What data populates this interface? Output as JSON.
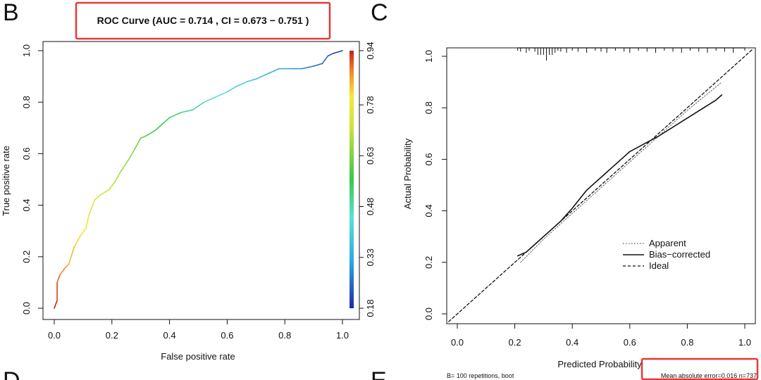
{
  "panels": {
    "b_letter": "B",
    "c_letter": "C",
    "d_letter": "D",
    "e_letter": "E"
  },
  "colors": {
    "highlight_box": "#e53935",
    "axis": "#111111"
  },
  "chart_data": [
    {
      "type": "line",
      "title": "ROC Curve (AUC = 0.714 , CI = 0.673 − 0.751 )",
      "xlabel": "False positive rate",
      "ylabel": "True positive rate",
      "xlim": [
        0,
        1
      ],
      "ylim": [
        0,
        1
      ],
      "xticks": [
        "0.0",
        "0.2",
        "0.4",
        "0.6",
        "0.8",
        "1.0"
      ],
      "yticks": [
        "0.0",
        "0.2",
        "0.4",
        "0.6",
        "0.8",
        "1.0"
      ],
      "colorbar": {
        "ticks": [
          "0.18",
          "0.33",
          "0.48",
          "0.63",
          "0.78",
          "0.94"
        ],
        "range": [
          0.18,
          0.94
        ]
      },
      "grid": false,
      "series": [
        {
          "x": [
            0,
            0.01,
            0.01,
            0.02,
            0.04,
            0.05,
            0.07,
            0.09,
            0.11,
            0.12,
            0.14,
            0.16,
            0.19,
            0.21,
            0.23,
            0.26,
            0.28,
            0.3,
            0.32,
            0.35,
            0.38,
            0.4,
            0.44,
            0.48,
            0.52,
            0.56,
            0.6,
            0.63,
            0.67,
            0.7,
            0.74,
            0.78,
            0.82,
            0.86,
            0.9,
            0.93,
            0.95,
            0.97,
            1.0
          ],
          "y": [
            0,
            0.03,
            0.1,
            0.13,
            0.16,
            0.17,
            0.24,
            0.28,
            0.31,
            0.36,
            0.42,
            0.44,
            0.46,
            0.49,
            0.53,
            0.58,
            0.62,
            0.66,
            0.67,
            0.69,
            0.72,
            0.74,
            0.76,
            0.77,
            0.8,
            0.82,
            0.84,
            0.86,
            0.88,
            0.89,
            0.91,
            0.93,
            0.93,
            0.93,
            0.94,
            0.95,
            0.98,
            0.99,
            1.0
          ],
          "threshold": [
            0.94,
            0.92,
            0.9,
            0.88,
            0.86,
            0.84,
            0.82,
            0.8,
            0.78,
            0.76,
            0.74,
            0.72,
            0.7,
            0.68,
            0.66,
            0.64,
            0.62,
            0.6,
            0.58,
            0.56,
            0.54,
            0.52,
            0.5,
            0.48,
            0.46,
            0.44,
            0.42,
            0.4,
            0.38,
            0.36,
            0.34,
            0.32,
            0.3,
            0.28,
            0.26,
            0.24,
            0.22,
            0.2,
            0.18
          ]
        }
      ]
    },
    {
      "type": "line",
      "xlabel": "Predicted Probability",
      "ylabel": "Actual Probability",
      "xlim": [
        0,
        1
      ],
      "ylim": [
        0,
        1
      ],
      "xticks": [
        "0.0",
        "0.2",
        "0.4",
        "0.6",
        "0.8",
        "1.0"
      ],
      "yticks": [
        "0.0",
        "0.2",
        "0.4",
        "0.6",
        "0.8",
        "1.0"
      ],
      "grid": false,
      "legend": {
        "position": "center-right",
        "entries": [
          "Apparent",
          "Bias−corrected",
          "Ideal"
        ]
      },
      "footnote_left": "B= 100 repetitions, boot",
      "footnote_right": "Mean absolute error=0.016 n=737",
      "series": [
        {
          "name": "Apparent",
          "style": "dotted",
          "x": [
            0.22,
            0.3,
            0.4,
            0.5,
            0.6,
            0.7,
            0.8,
            0.92
          ],
          "y": [
            0.2,
            0.29,
            0.39,
            0.49,
            0.59,
            0.69,
            0.79,
            0.9
          ]
        },
        {
          "name": "Bias−corrected",
          "style": "solid",
          "x": [
            0.21,
            0.24,
            0.3,
            0.36,
            0.4,
            0.45,
            0.5,
            0.55,
            0.6,
            0.65,
            0.7,
            0.8,
            0.9,
            0.92
          ],
          "y": [
            0.225,
            0.24,
            0.3,
            0.36,
            0.41,
            0.48,
            0.53,
            0.58,
            0.63,
            0.66,
            0.69,
            0.76,
            0.83,
            0.85
          ]
        },
        {
          "name": "Ideal",
          "style": "dashed",
          "x": [
            -0.03,
            1.03
          ],
          "y": [
            -0.03,
            1.03
          ]
        }
      ],
      "rug_x": [
        0.21,
        0.22,
        0.24,
        0.25,
        0.27,
        0.28,
        0.29,
        0.3,
        0.31,
        0.32,
        0.33,
        0.34,
        0.35,
        0.36,
        0.38,
        0.4,
        0.42,
        0.45,
        0.48,
        0.5,
        0.52,
        0.55,
        0.58,
        0.6,
        0.63,
        0.66,
        0.69,
        0.72,
        0.75,
        0.78,
        0.81,
        0.84,
        0.87,
        0.9,
        0.93,
        0.96,
        1.0
      ]
    }
  ]
}
